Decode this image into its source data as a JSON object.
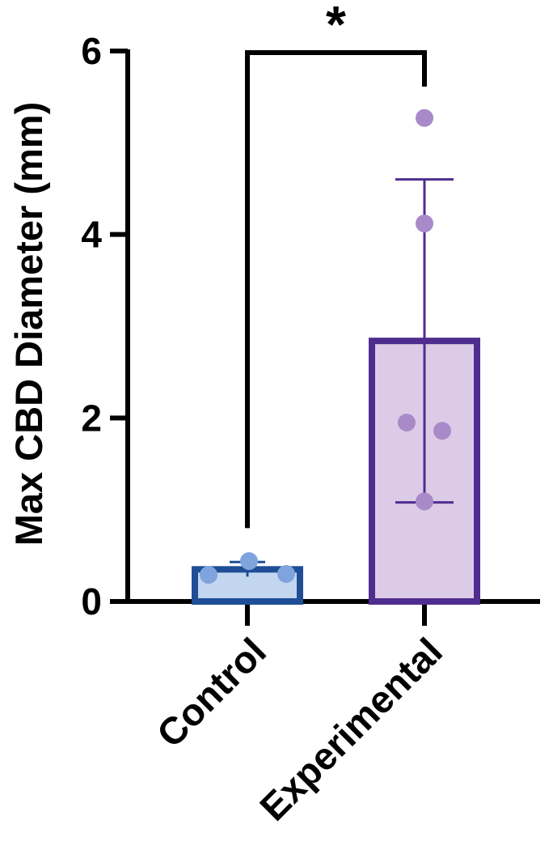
{
  "chart_data": {
    "type": "bar",
    "title": "",
    "xlabel": "",
    "ylabel": "Max CBD Diameter (mm)",
    "ylim": [
      0,
      6
    ],
    "yticks": [
      0,
      2,
      4,
      6
    ],
    "categories": [
      "Control",
      "Experimental"
    ],
    "values": [
      0.35,
      2.84
    ],
    "error_sd": [
      0.08,
      1.76
    ],
    "points": [
      [
        0.29,
        0.44,
        0.3
      ],
      [
        5.27,
        4.12,
        1.95,
        1.86,
        1.09
      ]
    ],
    "significance": "*",
    "colors": {
      "control_fill": "#c3d6f0",
      "control_edge": "#1f4e96",
      "control_points": "#7fa3dc",
      "experimental_fill": "#dccbe6",
      "experimental_edge": "#4f2d8f",
      "experimental_points": "#a98ac9"
    }
  }
}
